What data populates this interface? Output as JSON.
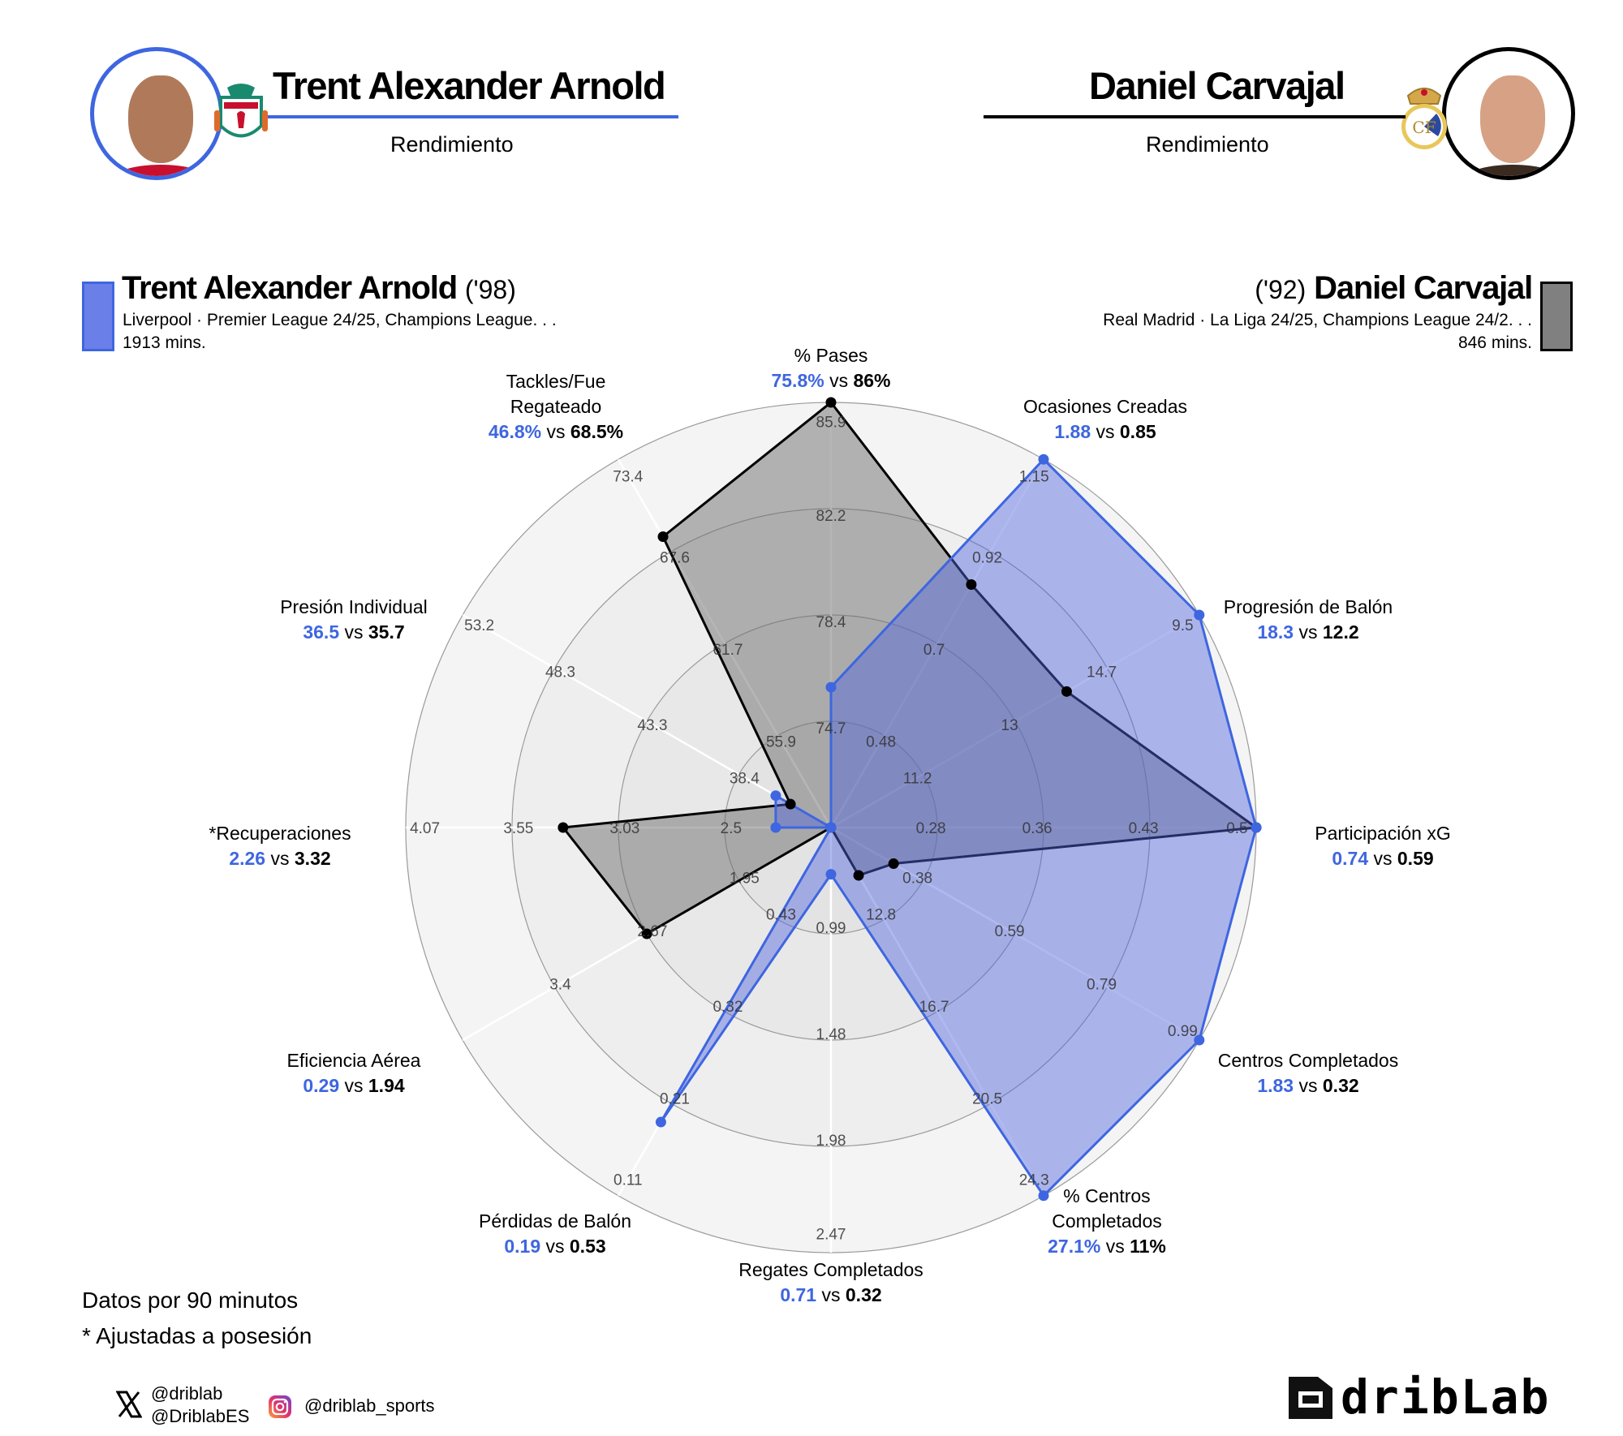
{
  "header": {
    "left": {
      "name": "Trent Alexander Arnold",
      "subtitle": "Rendimiento",
      "accent": "#3e66e0",
      "crest": "liverpool-crest"
    },
    "right": {
      "name": "Daniel Carvajal",
      "subtitle": "Rendimiento",
      "accent": "#000000",
      "crest": "real-madrid-crest"
    }
  },
  "players": {
    "p1": {
      "name": "Trent Alexander Arnold",
      "year": "('98)",
      "info": "Liverpool · Premier League 24/25, Champions League. . .",
      "minutes": "1913 mins.",
      "color": "#6b7fe8",
      "border": "#3e66e0"
    },
    "p2": {
      "name": "Daniel Carvajal",
      "year": "('92)",
      "info": "Real Madrid · La Liga 24/25, Champions League 24/2. . .",
      "minutes": "846 mins.",
      "color": "#808080",
      "border": "#000000"
    }
  },
  "axes": [
    {
      "label": [
        "% Pases"
      ],
      "v1": "75.8%",
      "v2": "86%"
    },
    {
      "label": [
        "Ocasiones Creadas"
      ],
      "v1": "1.88",
      "v2": "0.85"
    },
    {
      "label": [
        "Progresión de Balón"
      ],
      "v1": "18.3",
      "v2": "12.2"
    },
    {
      "label": [
        "Participación xG"
      ],
      "v1": "0.74",
      "v2": "0.59"
    },
    {
      "label": [
        "Centros Completados"
      ],
      "v1": "1.83",
      "v2": "0.32"
    },
    {
      "label": [
        "% Centros",
        "Completados"
      ],
      "v1": "27.1%",
      "v2": "11%"
    },
    {
      "label": [
        "Regates Completados"
      ],
      "v1": "0.71",
      "v2": "0.32"
    },
    {
      "label": [
        "Pérdidas de Balón"
      ],
      "v1": "0.19",
      "v2": "0.53"
    },
    {
      "label": [
        "Eficiencia Aérea"
      ],
      "v1": "0.29",
      "v2": "1.94"
    },
    {
      "label": [
        "*Recuperaciones"
      ],
      "v1": "2.26",
      "v2": "3.32"
    },
    {
      "label": [
        "Presión Individual"
      ],
      "v1": "36.5",
      "v2": "35.7"
    },
    {
      "label": [
        "Tackles/Fue",
        "Regateado"
      ],
      "v1": "46.8%",
      "v2": "68.5%"
    }
  ],
  "vs_word": "vs",
  "chart_data": {
    "type": "radar",
    "title": "Trent Alexander Arnold vs Daniel Carvajal — Rendimiento",
    "categories": [
      "% Pases",
      "Ocasiones Creadas",
      "Progresión de Balón",
      "Participación xG",
      "Centros Completados",
      "% Centros Completados",
      "Regates Completados",
      "Pérdidas de Balón",
      "Eficiencia Aérea",
      "*Recuperaciones",
      "Presión Individual",
      "Tackles/Fue Regateado"
    ],
    "series": [
      {
        "name": "Trent Alexander Arnold",
        "color": "#3e66e0",
        "fill": "rgba(83,103,222,0.45)",
        "values": [
          75.8,
          1.88,
          18.3,
          0.74,
          1.83,
          27.1,
          0.71,
          0.19,
          0.29,
          2.26,
          36.5,
          46.8
        ],
        "normalized": [
          0.33,
          1.0,
          1.0,
          1.0,
          1.0,
          1.0,
          0.11,
          0.8,
          0.0,
          0.13,
          0.15,
          0.0
        ]
      },
      {
        "name": "Daniel Carvajal",
        "color": "#000000",
        "fill": "rgba(110,110,110,0.5)",
        "values": [
          86,
          0.85,
          12.2,
          0.59,
          0.32,
          11,
          0.32,
          0.53,
          1.94,
          3.32,
          35.7,
          68.5
        ],
        "normalized": [
          1.0,
          0.66,
          0.64,
          1.0,
          0.17,
          0.13,
          0.0,
          0.0,
          0.5,
          0.63,
          0.11,
          0.79
        ]
      }
    ],
    "ring_ticks": [
      [
        "74.7",
        "78.4",
        "82.2",
        "85.9"
      ],
      [
        "0.48",
        "0.7",
        "0.92",
        "1.15"
      ],
      [
        "11.2",
        "13",
        "14.7",
        "9.5"
      ],
      [
        "0.28",
        "0.36",
        "0.43",
        "0.5"
      ],
      [
        "0.38",
        "0.59",
        "0.79",
        "0.99"
      ],
      [
        "12.8",
        "16.7",
        "20.5",
        "24.3"
      ],
      [
        "0.99",
        "1.48",
        "1.98",
        "2.47"
      ],
      [
        "0.43",
        "0.32",
        "0.21",
        "0.11"
      ],
      [
        "1.95",
        "2.67",
        "3.4",
        ""
      ],
      [
        "2.5",
        "3.03",
        "3.55",
        "4.07"
      ],
      [
        "38.4",
        "43.3",
        "48.3",
        "53.2"
      ],
      [
        "55.9",
        "61.7",
        "67.6",
        "73.4"
      ]
    ],
    "rings": 4,
    "grid": true
  },
  "notes": {
    "line1": "Datos por 90 minutos",
    "line2": "* Ajustadas a posesión"
  },
  "social": {
    "x_handle_1": "@driblab",
    "x_handle_2": "@DriblabES",
    "instagram": "@driblab_sports"
  },
  "brand": {
    "name": "dribLab"
  }
}
